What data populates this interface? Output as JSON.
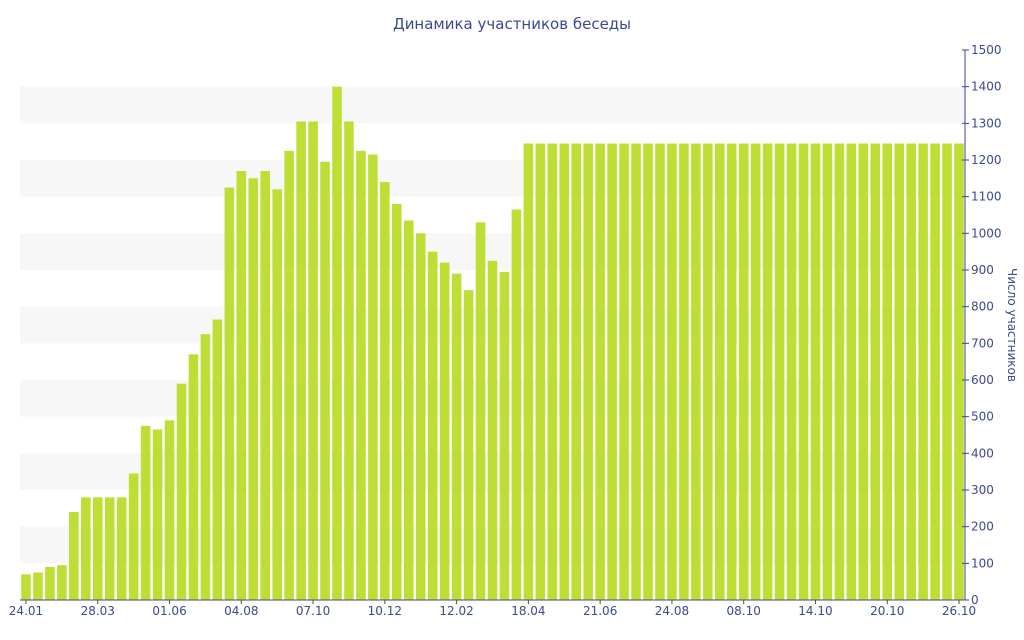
{
  "colors": {
    "bar": "#bddf35",
    "axis": "#3a4a8c",
    "band": "#f7f7f7"
  },
  "chart_data": {
    "type": "bar",
    "title": "Динамика участников беседы",
    "ylabel": "Число участников",
    "ylim": [
      0,
      1500
    ],
    "yticks": [
      0,
      100,
      200,
      300,
      400,
      500,
      600,
      700,
      800,
      900,
      1000,
      1100,
      1200,
      1300,
      1400,
      1500
    ],
    "xtick_labels": [
      {
        "index": 0,
        "label": "24.01"
      },
      {
        "index": 6,
        "label": "28.03"
      },
      {
        "index": 12,
        "label": "01.06"
      },
      {
        "index": 18,
        "label": "04.08"
      },
      {
        "index": 24,
        "label": "07.10"
      },
      {
        "index": 30,
        "label": "10.12"
      },
      {
        "index": 36,
        "label": "12.02"
      },
      {
        "index": 42,
        "label": "18.04"
      },
      {
        "index": 48,
        "label": "21.06"
      },
      {
        "index": 54,
        "label": "24.08"
      },
      {
        "index": 60,
        "label": "08.10"
      },
      {
        "index": 66,
        "label": "14.10"
      },
      {
        "index": 72,
        "label": "20.10"
      },
      {
        "index": 78,
        "label": "26.10"
      }
    ],
    "values": [
      70,
      75,
      90,
      95,
      240,
      280,
      280,
      280,
      280,
      345,
      475,
      465,
      490,
      590,
      670,
      725,
      765,
      1125,
      1170,
      1150,
      1170,
      1120,
      1225,
      1305,
      1305,
      1195,
      1400,
      1305,
      1225,
      1215,
      1140,
      1080,
      1035,
      1000,
      950,
      920,
      890,
      845,
      1030,
      925,
      895,
      1065,
      1245,
      1245,
      1245,
      1245,
      1245,
      1245,
      1245,
      1245,
      1245,
      1245,
      1245,
      1245,
      1245,
      1245,
      1245,
      1245,
      1245,
      1245,
      1245,
      1245,
      1245,
      1245,
      1245,
      1245,
      1245,
      1245,
      1245,
      1245,
      1245,
      1245,
      1245,
      1245,
      1245,
      1245,
      1245,
      1245,
      1245
    ]
  }
}
